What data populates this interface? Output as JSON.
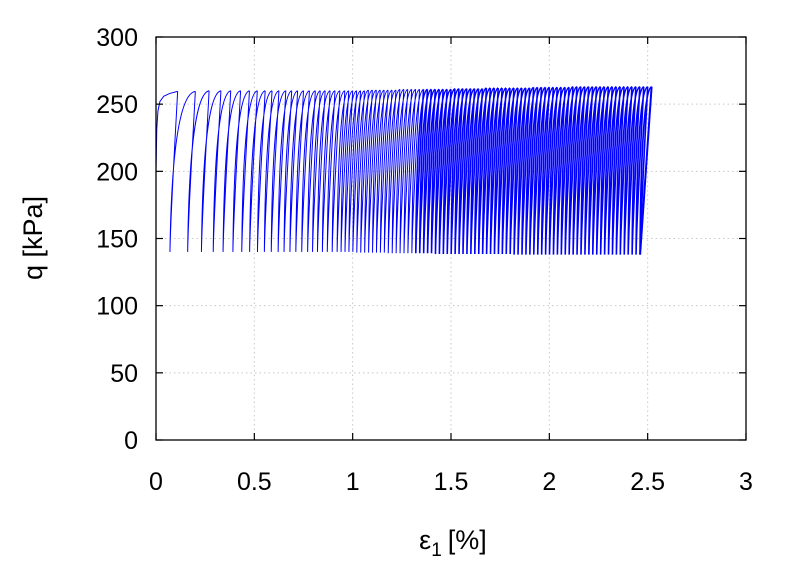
{
  "chart_data": {
    "type": "line",
    "xlabel_main": "ε",
    "xlabel_sub": "1",
    "xlabel_unit": "[%]",
    "ylabel": "q [kPa]",
    "xlim": [
      0,
      3
    ],
    "ylim": [
      0,
      300
    ],
    "x_ticks": [
      0,
      0.5,
      1,
      1.5,
      2,
      2.5,
      3
    ],
    "x_tick_labels": [
      "0",
      "0.5",
      "1",
      "1.5",
      "2",
      "2.5",
      "3"
    ],
    "y_ticks": [
      0,
      50,
      100,
      150,
      200,
      250,
      300
    ],
    "y_tick_labels": [
      "0",
      "50",
      "100",
      "150",
      "200",
      "250",
      "300"
    ],
    "grid": true,
    "series": [
      {
        "color": "#0000ff",
        "initial_loading": [
          [
            0.0,
            200
          ],
          [
            0.004,
            232
          ],
          [
            0.01,
            245
          ],
          [
            0.02,
            252
          ],
          [
            0.04,
            256
          ],
          [
            0.07,
            258
          ],
          [
            0.11,
            259.5
          ]
        ],
        "cycle_peak_strain": [
          0.11,
          0.2,
          0.27,
          0.33,
          0.38,
          0.43,
          0.475,
          0.515,
          0.555,
          0.59,
          0.625,
          0.66,
          0.69,
          0.72,
          0.75,
          0.78,
          0.81,
          0.835,
          0.86,
          0.885,
          0.91,
          0.935,
          0.96,
          0.98,
          1.0,
          1.02,
          1.04,
          1.06,
          1.08,
          1.1,
          1.12,
          1.14,
          1.16,
          1.18,
          1.2,
          1.22,
          1.24,
          1.26,
          1.28,
          1.3,
          1.32,
          1.34,
          1.36,
          1.38,
          1.4,
          1.42,
          1.44,
          1.46,
          1.48,
          1.5,
          1.52,
          1.54,
          1.56,
          1.58,
          1.6,
          1.62,
          1.64,
          1.66,
          1.68,
          1.7,
          1.72,
          1.74,
          1.76,
          1.78,
          1.8,
          1.82,
          1.84,
          1.86,
          1.88,
          1.9,
          1.92,
          1.94,
          1.96,
          1.98,
          2.0,
          2.02,
          2.04,
          2.06,
          2.08,
          2.1,
          2.12,
          2.14,
          2.16,
          2.18,
          2.2,
          2.22,
          2.24,
          2.26,
          2.28,
          2.3,
          2.32,
          2.34,
          2.36,
          2.38,
          2.4,
          2.42,
          2.44,
          2.46,
          2.48,
          2.5,
          2.52
        ],
        "q_max": [
          259.5,
          259.5,
          260,
          260,
          260,
          260,
          260,
          260,
          260,
          260,
          260,
          260,
          260,
          260,
          260,
          260,
          260,
          260,
          260,
          260,
          260,
          260,
          260,
          260,
          260,
          260,
          260,
          260,
          260.5,
          260.5,
          260.5,
          260.5,
          260.5,
          260.5,
          260.5,
          260.5,
          261,
          261,
          261,
          261,
          261,
          261,
          261,
          261,
          261,
          261,
          261,
          261,
          261,
          261,
          261.5,
          261.5,
          261.5,
          261.5,
          261.5,
          261.5,
          261.5,
          261.5,
          262,
          262,
          262,
          262,
          262,
          262,
          262,
          262,
          262,
          262,
          262,
          262,
          262.5,
          262.5,
          262.5,
          262.5,
          262.5,
          262.5,
          262.5,
          262.5,
          262.5,
          262.5,
          263,
          263,
          263,
          263,
          263,
          263,
          263,
          263,
          263,
          263,
          263,
          263,
          263,
          263,
          263,
          263,
          263,
          263,
          263,
          263,
          263
        ],
        "q_min": [
          140,
          140,
          140,
          140,
          140,
          140,
          140,
          140,
          140,
          140,
          140,
          140,
          140,
          140,
          140,
          140,
          140,
          140,
          140,
          140,
          140,
          140,
          140,
          140,
          140,
          140,
          140,
          139.5,
          139.5,
          139.5,
          139.5,
          139.5,
          139.5,
          139.5,
          139.5,
          139,
          139,
          139,
          139,
          139,
          139,
          139,
          139,
          139,
          139,
          139,
          139,
          138.5,
          138.5,
          138.5,
          138.5,
          138.5,
          138.5,
          138.5,
          138.5,
          138.5,
          138.5,
          138.5,
          138.5,
          138.5,
          138.5,
          138.5,
          138.5,
          138.5,
          138.5,
          138.5,
          138.5,
          138,
          138,
          138,
          138,
          138,
          138,
          138,
          138,
          138,
          138,
          138,
          138,
          138,
          138,
          138,
          138,
          138,
          138,
          138,
          138,
          138,
          138,
          138,
          138,
          138,
          138,
          138,
          138,
          138,
          138,
          138,
          138,
          138,
          138
        ],
        "unloading_strain_drop": 0.065
      }
    ]
  }
}
